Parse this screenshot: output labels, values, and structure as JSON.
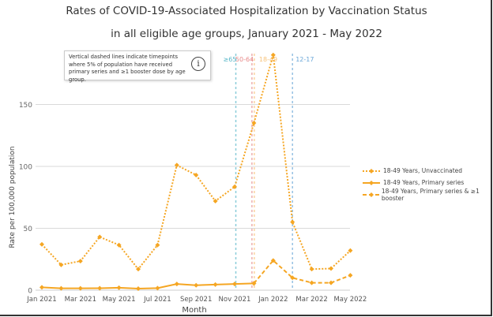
{
  "chart_data": {
    "type": "line",
    "title": "Rates of COVID-19-Associated Hospitalization by Vaccination Status",
    "subtitle": "in all eligible age groups, January 2021 - May 2022",
    "xlabel": "Month",
    "ylabel": "Rate per 100,000 population",
    "ylim": [
      0,
      190
    ],
    "yticks": [
      0,
      50,
      100,
      150
    ],
    "grid": true,
    "legend_position": "right",
    "x": [
      "Jan 2021",
      "Feb 2021",
      "Mar 2021",
      "Apr 2021",
      "May 2021",
      "Jun 2021",
      "Jul 2021",
      "Aug 2021",
      "Sep 2021",
      "Oct 2021",
      "Nov 2021",
      "Dec 2021",
      "Jan 2022",
      "Feb 2022",
      "Mar 2022",
      "Apr 2022",
      "May 2022"
    ],
    "xtick_labels": [
      "Jan 2021",
      "Mar 2021",
      "May 2021",
      "Jul 2021",
      "Sep 2021",
      "Nov 2021",
      "Jan 2022",
      "Mar 2022",
      "May 2022"
    ],
    "series": [
      {
        "name": "18-49 Years, Unvaccinated",
        "style": "dotted",
        "color": "#f5a623",
        "values": [
          37,
          20.5,
          23.5,
          43,
          36.5,
          17,
          36.5,
          101,
          93,
          72,
          83.5,
          135,
          190,
          55,
          17,
          17.5,
          32
        ]
      },
      {
        "name": "18-49 Years, Primary series",
        "style": "solid",
        "color": "#f5a623",
        "values": [
          2.3,
          1.5,
          1.5,
          1.6,
          2,
          1.3,
          1.7,
          5,
          4,
          4.5,
          5,
          5.5,
          null,
          null,
          null,
          null,
          null
        ]
      },
      {
        "name": "18-49 Years, Primary series & ≥1 booster",
        "style": "dashed",
        "color": "#f5a623",
        "values": [
          null,
          null,
          null,
          null,
          null,
          null,
          null,
          null,
          null,
          null,
          null,
          5.5,
          24,
          10,
          6,
          6,
          12
        ]
      }
    ],
    "annotations": {
      "vlines": [
        {
          "label": "≥65",
          "x": "Nov 2021",
          "color": "#5bb8c9"
        },
        {
          "label": "50-64",
          "x": "Dec 2021",
          "color": "#e88a8a"
        },
        {
          "label": "18-49",
          "x": "Dec 2021",
          "color": "#f7c27a"
        },
        {
          "label": "12-17",
          "x": "Feb 2022",
          "color": "#6aa7d8"
        }
      ],
      "note": "Vertical dashed lines indicate timepoints where 5% of population have received primary series and ≥1 booster dose by age group."
    }
  }
}
